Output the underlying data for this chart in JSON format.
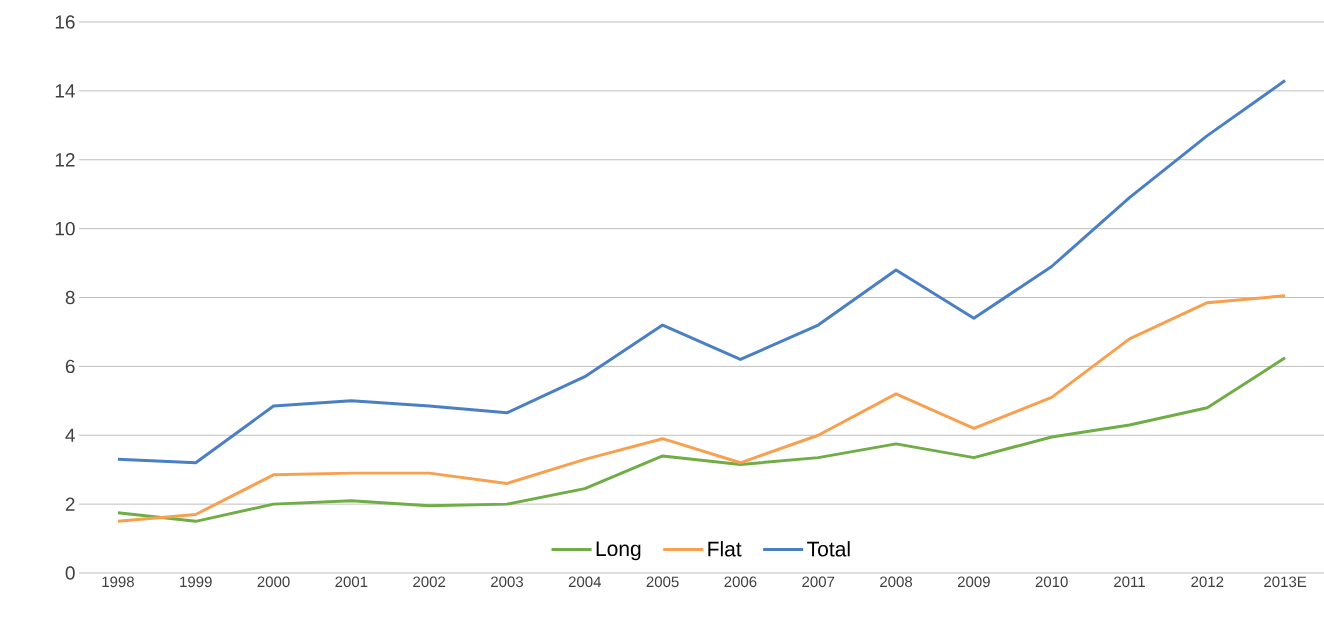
{
  "chart_data": {
    "type": "line",
    "categories": [
      "1998",
      "1999",
      "2000",
      "2001",
      "2002",
      "2003",
      "2004",
      "2005",
      "2006",
      "2007",
      "2008",
      "2009",
      "2010",
      "2011",
      "2012",
      "2013E"
    ],
    "series": [
      {
        "name": "Long",
        "color": "#70ad47",
        "values": [
          1.75,
          1.5,
          2.0,
          2.1,
          1.95,
          2.0,
          2.45,
          3.4,
          3.15,
          3.35,
          3.75,
          3.35,
          3.95,
          4.3,
          4.8,
          6.25
        ]
      },
      {
        "name": "Flat",
        "color": "#f7a04f",
        "values": [
          1.5,
          1.7,
          2.85,
          2.9,
          2.9,
          2.6,
          3.3,
          3.9,
          3.2,
          4.0,
          5.2,
          4.2,
          5.1,
          6.8,
          7.85,
          8.05
        ]
      },
      {
        "name": "Total",
        "color": "#4a7fc4",
        "values": [
          3.3,
          3.2,
          4.85,
          5.0,
          4.85,
          4.65,
          5.7,
          7.2,
          6.2,
          7.2,
          8.8,
          7.4,
          8.9,
          10.9,
          12.7,
          14.3
        ]
      }
    ],
    "ylim": [
      0,
      16
    ],
    "yticks": [
      0,
      2,
      4,
      6,
      8,
      10,
      12,
      14,
      16
    ],
    "grid": "y",
    "legend": "bottom",
    "marker": "none",
    "line_style": "solid"
  }
}
